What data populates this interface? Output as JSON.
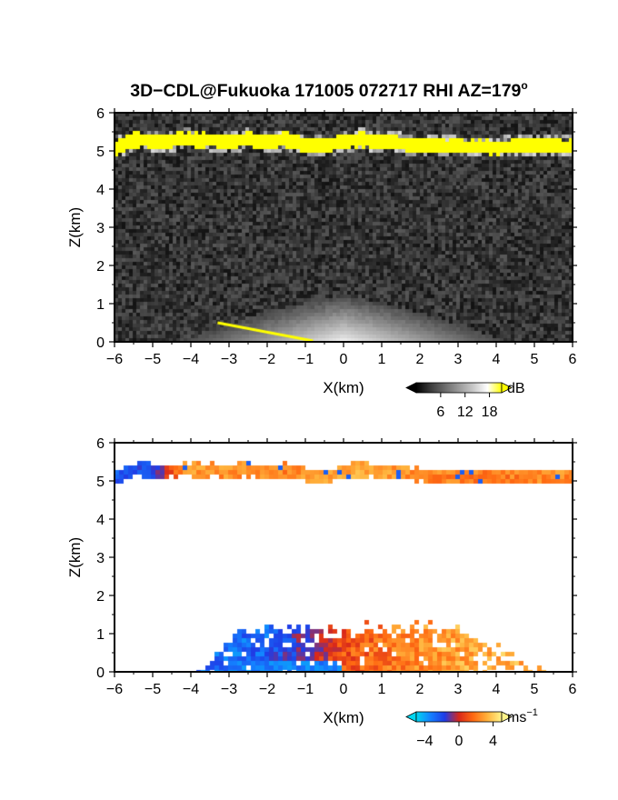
{
  "figure": {
    "title_main": "3D−CDL@Fukuoka 171005 072717 RHI AZ=179",
    "title_degree": "o"
  },
  "chart_data": [
    {
      "type": "heatmap",
      "variable": "reflectivity",
      "xlabel": "X(km)",
      "ylabel": "Z(km)",
      "xlim": [
        -6,
        6
      ],
      "ylim": [
        0,
        6
      ],
      "x_ticks": [
        "−6",
        "−5",
        "−4",
        "−3",
        "−2",
        "−1",
        "0",
        "1",
        "2",
        "3",
        "4",
        "5",
        "6"
      ],
      "y_ticks": [
        "0",
        "1",
        "2",
        "3",
        "4",
        "5",
        "6"
      ],
      "colorbar": {
        "unit": "dB",
        "unit_superscript": "",
        "tick_labels": [
          "6",
          "12",
          "18"
        ],
        "tick_values": [
          6,
          12,
          18
        ],
        "range": [
          0,
          21
        ],
        "colors": [
          "#000000",
          "#ffffff",
          "#ffff00"
        ]
      },
      "features": [
        {
          "name": "upper echo layer",
          "x_range": [
            -6,
            6
          ],
          "z_center": [
            [
              -6,
              5.05
            ],
            [
              -5.5,
              5.3
            ],
            [
              -5,
              5.25
            ],
            [
              -4,
              5.3
            ],
            [
              -3,
              5.25
            ],
            [
              -2.5,
              5.3
            ],
            [
              -2,
              5.2
            ],
            [
              -1.5,
              5.3
            ],
            [
              -1,
              5.15
            ],
            [
              -0.5,
              5.1
            ],
            [
              0,
              5.25
            ],
            [
              0.5,
              5.3
            ],
            [
              1,
              5.25
            ],
            [
              2,
              5.15
            ],
            [
              3,
              5.1
            ],
            [
              4,
              5.1
            ],
            [
              5,
              5.15
            ],
            [
              6,
              5.1
            ]
          ],
          "thickness_km": 0.32,
          "value_db": 20
        },
        {
          "name": "low-level echo dome",
          "center_x": 0,
          "max_height_km": 1.2,
          "value_db_at_ground": 14
        },
        {
          "name": "ground clutter",
          "segment": [
            [
              -3.3,
              0.5
            ],
            [
              -0.8,
              0.0
            ]
          ],
          "value_db": 20
        }
      ],
      "background_noise_db": [
        0,
        7
      ]
    },
    {
      "type": "heatmap",
      "variable": "doppler velocity",
      "xlabel": "X(km)",
      "ylabel": "Z(km)",
      "xlim": [
        -6,
        6
      ],
      "ylim": [
        0,
        6
      ],
      "x_ticks": [
        "−6",
        "−5",
        "−4",
        "−3",
        "−2",
        "−1",
        "0",
        "1",
        "2",
        "3",
        "4",
        "5",
        "6"
      ],
      "y_ticks": [
        "0",
        "1",
        "2",
        "3",
        "4",
        "5",
        "6"
      ],
      "colorbar": {
        "unit": "ms",
        "unit_superscript": "−1",
        "tick_labels": [
          "−4",
          "0",
          "4"
        ],
        "tick_values": [
          -4,
          0,
          4
        ],
        "range": [
          -5,
          5
        ],
        "colors": [
          "#00d6f0",
          "#1480ff",
          "#1f3ce6",
          "#d8281a",
          "#ff6a12",
          "#ffb23c",
          "#fff48a"
        ]
      },
      "features": [
        {
          "name": "upper echo layer",
          "x_range": [
            -6,
            6
          ],
          "thickness_km": 0.3,
          "velocity": [
            [
              -6,
              -2.5
            ],
            [
              -5,
              -2.0
            ],
            [
              -4.2,
              2.8
            ],
            [
              -3,
              2.5
            ],
            [
              -1.5,
              2.2
            ],
            [
              0,
              3.2
            ],
            [
              2,
              2.4
            ],
            [
              4,
              2.0
            ],
            [
              6,
              2.5
            ]
          ]
        },
        {
          "name": "low-level echo",
          "x_range": [
            -3.8,
            5.5
          ],
          "max_height_km": 1.2,
          "velocity": [
            [
              -3.5,
              -3.0
            ],
            [
              -2,
              -2.6
            ],
            [
              -1,
              -1.0
            ],
            [
              0,
              1.0
            ],
            [
              1.5,
              2.2
            ],
            [
              3,
              3.0
            ],
            [
              5,
              3.4
            ]
          ]
        }
      ]
    }
  ]
}
